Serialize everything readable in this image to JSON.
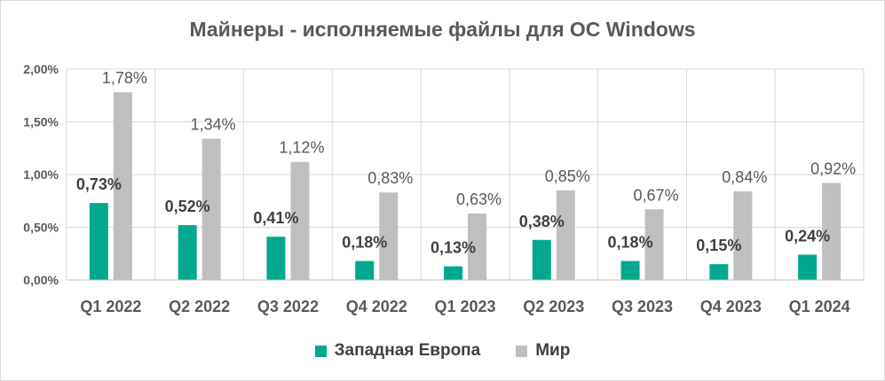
{
  "chart_data": {
    "type": "bar",
    "title": "Майнеры - исполняемые файлы для ОС Windows",
    "categories": [
      "Q1 2022",
      "Q2 2022",
      "Q3 2022",
      "Q4 2022",
      "Q1 2023",
      "Q2 2023",
      "Q3 2023",
      "Q4 2023",
      "Q1 2024"
    ],
    "series": [
      {
        "name": "Западная Европа",
        "values": [
          0.73,
          0.52,
          0.41,
          0.18,
          0.13,
          0.38,
          0.18,
          0.15,
          0.24
        ],
        "labels": [
          "0,73%",
          "0,52%",
          "0,41%",
          "0,18%",
          "0,13%",
          "0,38%",
          "0,18%",
          "0,15%",
          "0,24%"
        ],
        "color": "#00a88e"
      },
      {
        "name": "Мир",
        "values": [
          1.78,
          1.34,
          1.12,
          0.83,
          0.63,
          0.85,
          0.67,
          0.84,
          0.92
        ],
        "labels": [
          "1,78%",
          "1,34%",
          "1,12%",
          "0,83%",
          "0,63%",
          "0,85%",
          "0,67%",
          "0,84%",
          "0,92%"
        ],
        "color": "#bfbfbf"
      }
    ],
    "ylim": [
      0,
      2
    ],
    "yticks": [
      0,
      0.5,
      1,
      1.5,
      2
    ],
    "ytick_labels": [
      "0,00%",
      "0,50%",
      "1,00%",
      "1,50%",
      "2,00%"
    ],
    "grid": true,
    "legend": "bottom"
  }
}
